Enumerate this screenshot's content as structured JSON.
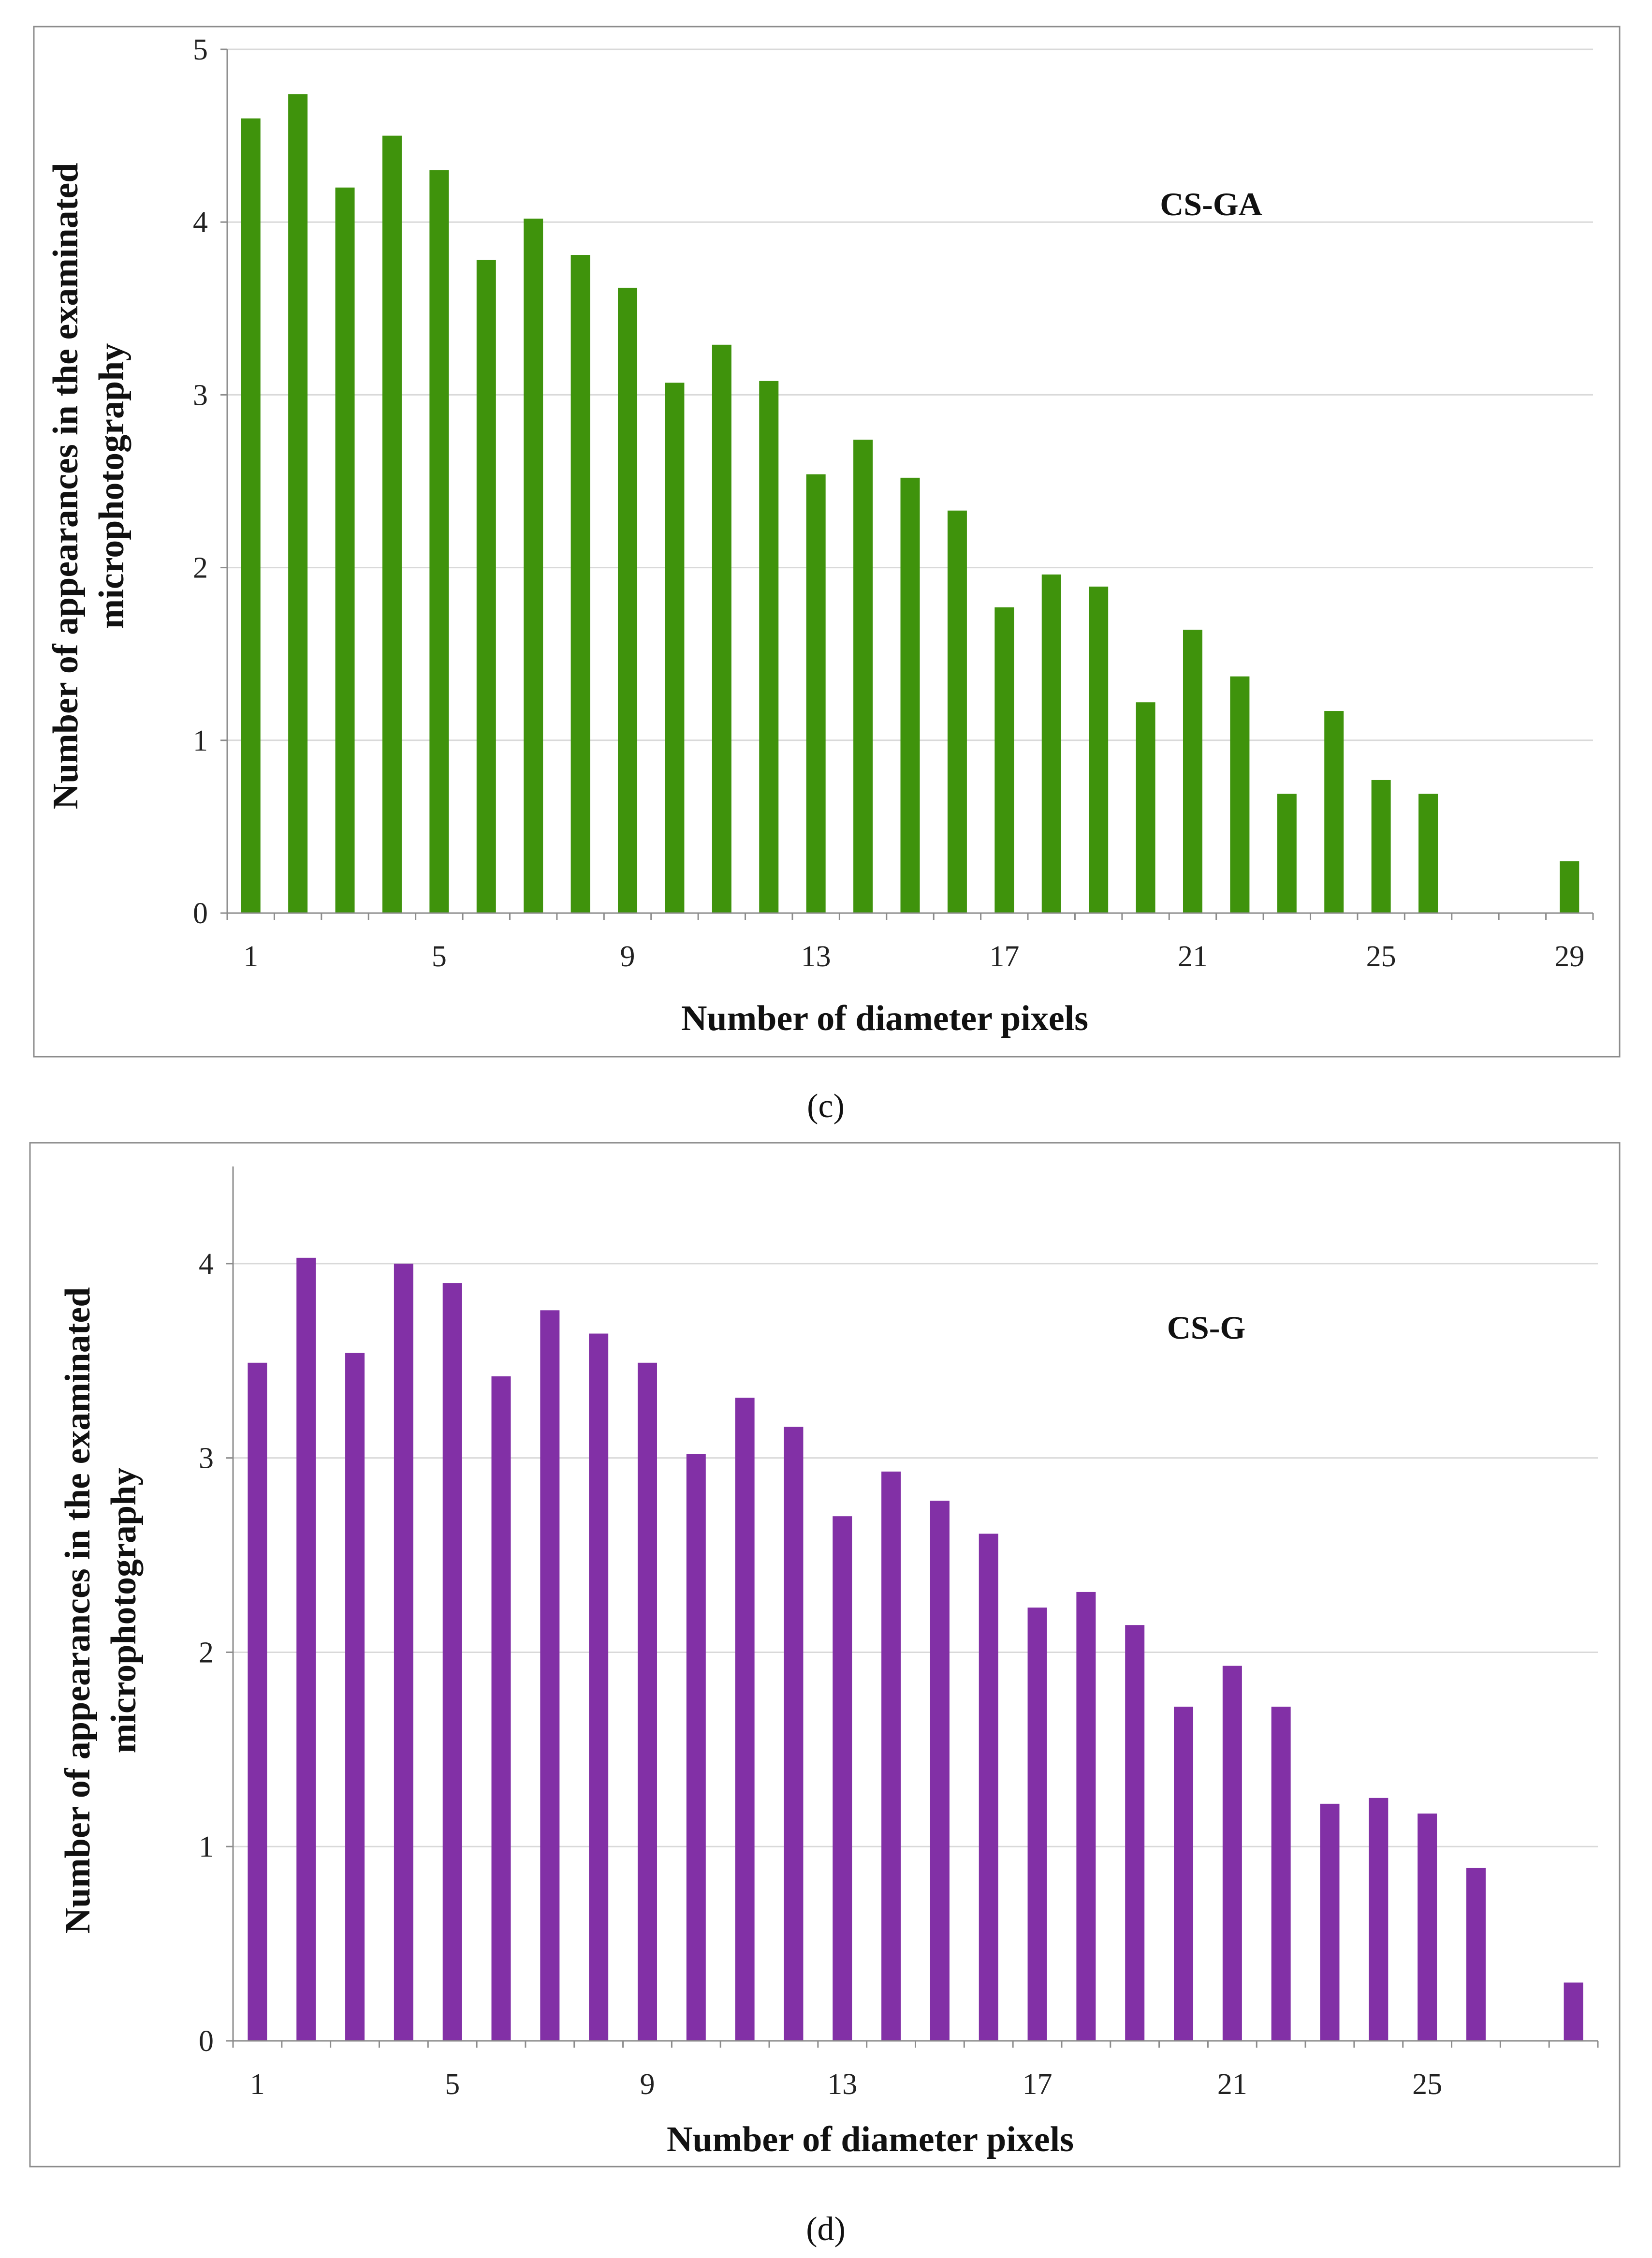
{
  "chart_data": [
    {
      "type": "bar",
      "panel": "(c)",
      "series_label": "CS-GA",
      "color": "#3f930c",
      "xlabel": "Number of diameter pixels",
      "ylabel": [
        "Number of appearances in the examinated",
        "microphotography"
      ],
      "ylim": [
        0,
        5
      ],
      "yticks": [
        0,
        1,
        2,
        3,
        4,
        5
      ],
      "xlim": [
        0.5,
        29.5
      ],
      "xticks": [
        1,
        5,
        9,
        13,
        17,
        21,
        25,
        29
      ],
      "x": [
        1,
        2,
        3,
        4,
        5,
        6,
        7,
        8,
        9,
        10,
        11,
        12,
        13,
        14,
        15,
        16,
        17,
        18,
        19,
        20,
        21,
        22,
        23,
        24,
        25,
        26,
        29
      ],
      "values": [
        4.6,
        4.74,
        4.2,
        4.5,
        4.3,
        3.78,
        4.02,
        3.81,
        3.62,
        3.07,
        3.29,
        3.08,
        2.54,
        2.74,
        2.52,
        2.33,
        1.77,
        1.96,
        1.89,
        1.22,
        1.64,
        1.37,
        0.69,
        1.17,
        0.77,
        0.69,
        0.3
      ]
    },
    {
      "type": "bar",
      "panel": "(d)",
      "series_label": "CS-G",
      "color": "#8230a6",
      "xlabel": "Number of diameter pixels",
      "ylabel": [
        "Number of appearances in the examinated",
        "microphotography"
      ],
      "ylim": [
        0,
        4.5
      ],
      "yticks": [
        0,
        1,
        2,
        3,
        4
      ],
      "xlim": [
        0.5,
        28.5
      ],
      "xticks": [
        1,
        5,
        9,
        13,
        17,
        21,
        25
      ],
      "x": [
        1,
        2,
        3,
        4,
        5,
        6,
        7,
        8,
        9,
        10,
        11,
        12,
        13,
        14,
        15,
        16,
        17,
        18,
        19,
        20,
        21,
        22,
        23,
        24,
        25,
        26,
        28
      ],
      "values": [
        3.49,
        4.03,
        3.54,
        4.0,
        3.9,
        3.42,
        3.76,
        3.64,
        3.49,
        3.02,
        3.31,
        3.16,
        2.7,
        2.93,
        2.78,
        2.61,
        2.23,
        2.31,
        2.14,
        1.72,
        1.93,
        1.72,
        1.22,
        1.25,
        1.17,
        0.89,
        0.3
      ]
    }
  ]
}
